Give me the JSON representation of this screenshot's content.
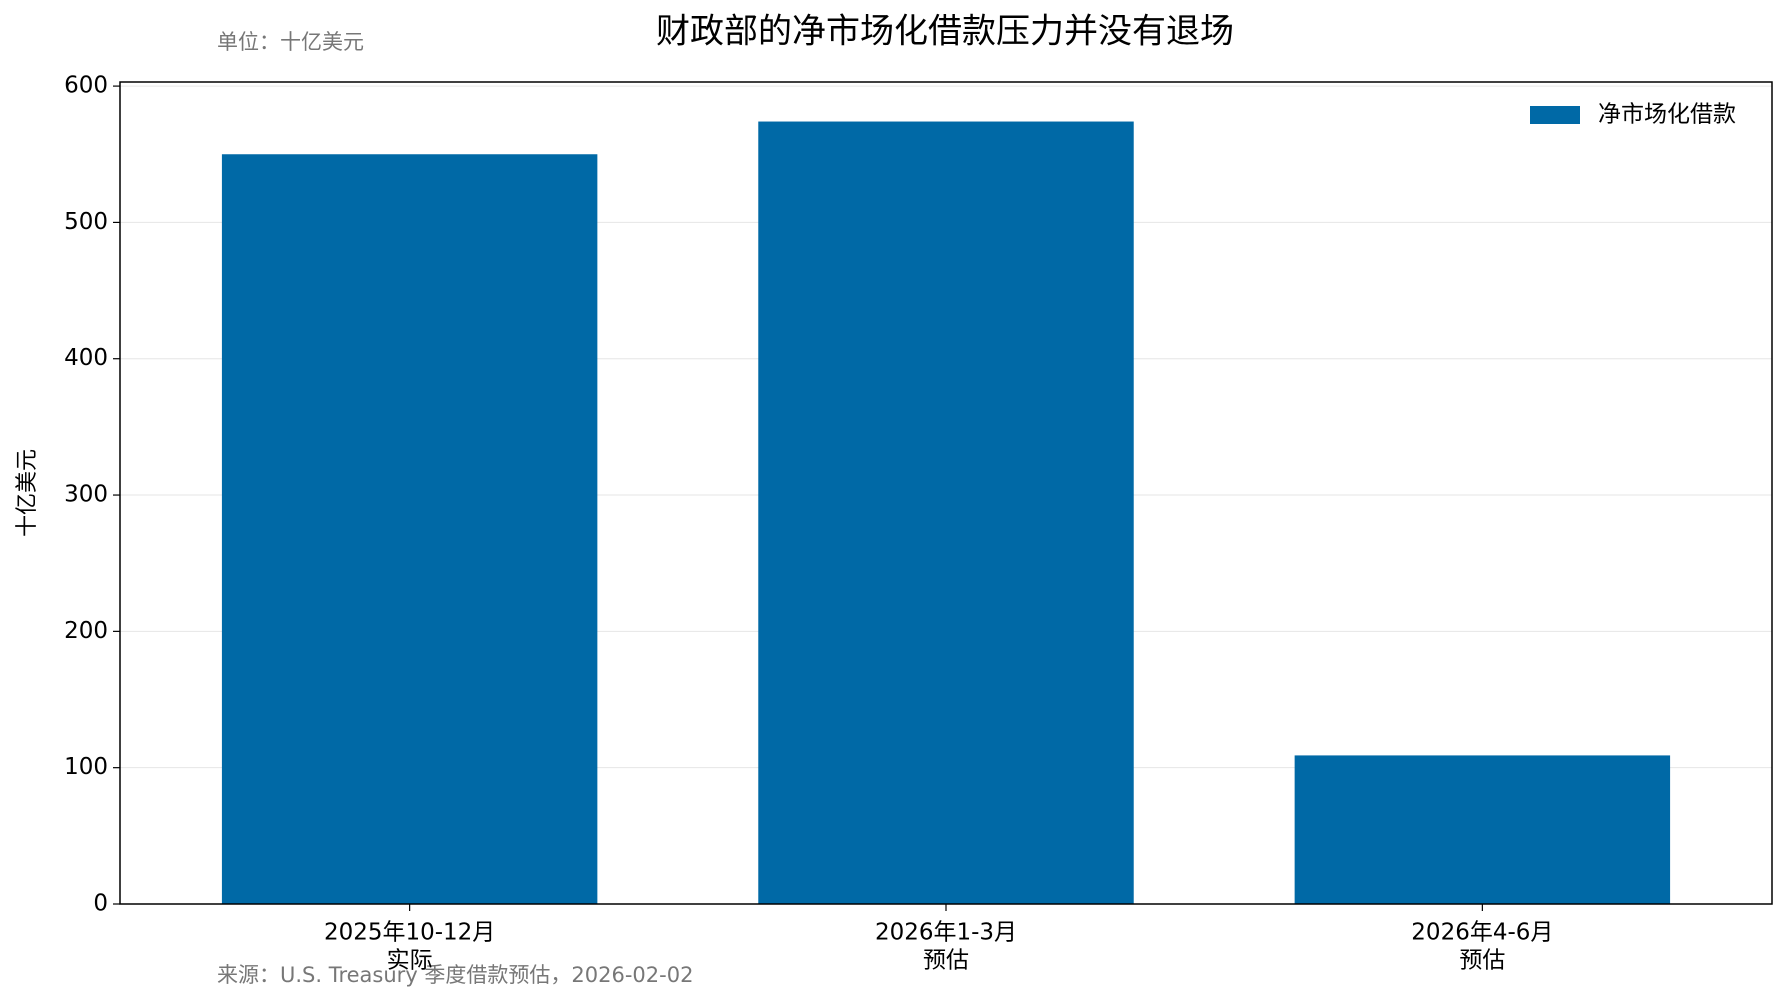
{
  "chart_data": {
    "type": "bar",
    "title": "财政部的净市场化借款压力并没有退场",
    "subtitle": "单位：十亿美元",
    "source": "来源：U.S. Treasury 季度借款预估，2026-02-02",
    "y_label": "十亿美元",
    "categories": [
      "2025年10-12月",
      "2026年1-3月",
      "2026年4-6月"
    ],
    "category_sublabels": [
      "实际",
      "预估",
      "预估"
    ],
    "series": [
      {
        "name": "净市场化借款",
        "color": "#0069a6",
        "values": [
          550,
          574,
          109
        ]
      }
    ],
    "ylim": [
      0,
      603
    ],
    "yticks": [
      0,
      100,
      200,
      300,
      400,
      500,
      600
    ],
    "grid": true,
    "legend": "upper right"
  }
}
